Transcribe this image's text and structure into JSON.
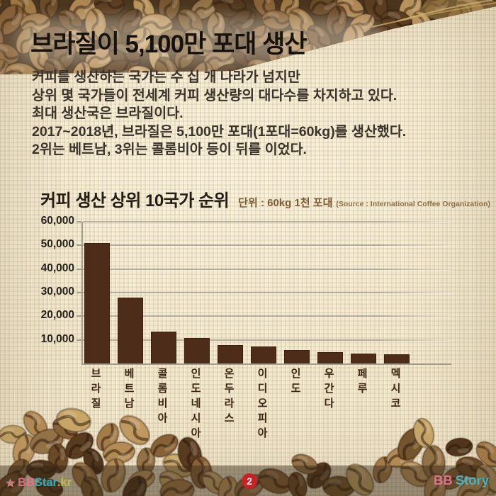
{
  "page": {
    "title": "브라질이 5,100만 포대 생산",
    "body_lines": [
      "커피를 생산하는 국가는 수 십 개 나라가 넘지만",
      "상위 몇 국가들이 전세계 커피 생산량의 대다수를 차지하고 있다.",
      "최대 생산국은 브라질이다.",
      "2017~2018년, 브라질은 5,100만 포대(1포대=60kg)를 생산했다.",
      "2위는 베트남, 3위는 콜롬비아 등이 뒤를 이었다."
    ],
    "page_number": "2"
  },
  "chart": {
    "title": "커피 생산 상위 10국가 순위",
    "unit_label": "단위 : 60kg 1천 포대",
    "source_label": "(Source : International Coffee Organization)"
  },
  "chart_data": {
    "type": "bar",
    "title": "커피 생산 상위 10국가 순위",
    "unit": "60kg 1천 포대",
    "source": "International Coffee Organization",
    "categories": [
      "브라질",
      "베트남",
      "콜롬비아",
      "인도네시아",
      "온두라스",
      "이디오피아",
      "인도",
      "우간다",
      "페루",
      "멕시코"
    ],
    "values": [
      51000,
      28000,
      13500,
      10800,
      7800,
      7100,
      5600,
      4900,
      4100,
      3800
    ],
    "xlabel": "",
    "ylabel": "",
    "ylim": [
      0,
      60000
    ],
    "yticks": [
      10000,
      20000,
      30000,
      40000,
      50000,
      60000
    ],
    "grid": true,
    "legend": false,
    "bar_color": "#4d2d1a"
  },
  "footer": {
    "left_logo": {
      "bb": "BB",
      "star_text": "Star",
      "domain": ".kr"
    },
    "right_logo": {
      "bb": "BB",
      "story": "Story"
    },
    "page_badge": "2"
  },
  "colors": {
    "background": "#efe5cb",
    "bar": "#4d2d1a",
    "badge": "#cf1f26",
    "unit_text": "#7c5c36"
  }
}
